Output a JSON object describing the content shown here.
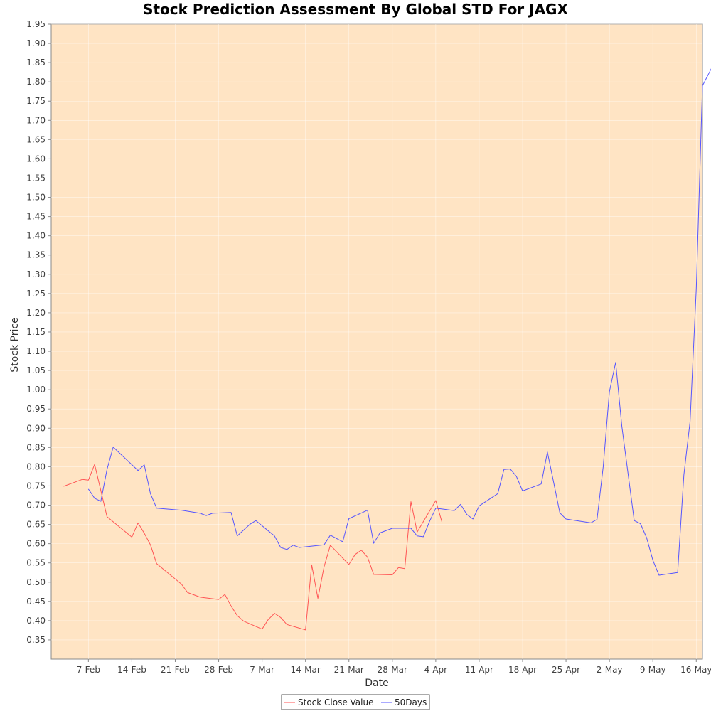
{
  "chart_data": {
    "type": "line",
    "title": "Stock Prediction Assessment By Global STD For JAGX",
    "xlabel": "Date",
    "ylabel": "Stock Price",
    "ylim": [
      0.3,
      1.95
    ],
    "xlim": [
      "2022-02-01",
      "2022-05-17"
    ],
    "y_ticks": [
      "0.35",
      "0.40",
      "0.45",
      "0.50",
      "0.55",
      "0.60",
      "0.65",
      "0.70",
      "0.75",
      "0.80",
      "0.85",
      "0.90",
      "0.95",
      "1.00",
      "1.05",
      "1.10",
      "1.15",
      "1.20",
      "1.25",
      "1.30",
      "1.35",
      "1.40",
      "1.45",
      "1.50",
      "1.55",
      "1.60",
      "1.65",
      "1.70",
      "1.75",
      "1.80",
      "1.85",
      "1.90",
      "1.95"
    ],
    "x_ticks": [
      {
        "date": "2022-02-07",
        "label": "7-Feb"
      },
      {
        "date": "2022-02-14",
        "label": "14-Feb"
      },
      {
        "date": "2022-02-21",
        "label": "21-Feb"
      },
      {
        "date": "2022-02-28",
        "label": "28-Feb"
      },
      {
        "date": "2022-03-07",
        "label": "7-Mar"
      },
      {
        "date": "2022-03-14",
        "label": "14-Mar"
      },
      {
        "date": "2022-03-21",
        "label": "21-Mar"
      },
      {
        "date": "2022-03-28",
        "label": "28-Mar"
      },
      {
        "date": "2022-04-04",
        "label": "4-Apr"
      },
      {
        "date": "2022-04-11",
        "label": "11-Apr"
      },
      {
        "date": "2022-04-18",
        "label": "18-Apr"
      },
      {
        "date": "2022-04-25",
        "label": "25-Apr"
      },
      {
        "date": "2022-05-02",
        "label": "2-May"
      },
      {
        "date": "2022-05-09",
        "label": "9-May"
      },
      {
        "date": "2022-05-16",
        "label": "16-May"
      }
    ],
    "grid": true,
    "legend_position": "bottom-center",
    "colors": {
      "plot_background": "#ffe4c4",
      "Stock Close Value": "#ff5555",
      "50Days": "#5555ff"
    },
    "series": [
      {
        "name": "Stock Close Value",
        "points": [
          [
            "2022-02-03",
            0.749
          ],
          [
            "2022-02-06",
            0.767
          ],
          [
            "2022-02-07",
            0.765
          ],
          [
            "2022-02-08",
            0.806
          ],
          [
            "2022-02-10",
            0.67
          ],
          [
            "2022-02-14",
            0.617
          ],
          [
            "2022-02-15",
            0.654
          ],
          [
            "2022-02-16",
            0.627
          ],
          [
            "2022-02-17",
            0.597
          ],
          [
            "2022-02-18",
            0.548
          ],
          [
            "2022-02-22",
            0.495
          ],
          [
            "2022-02-23",
            0.473
          ],
          [
            "2022-02-25",
            0.461
          ],
          [
            "2022-02-28",
            0.455
          ],
          [
            "2022-03-01",
            0.468
          ],
          [
            "2022-03-02",
            0.438
          ],
          [
            "2022-03-03",
            0.413
          ],
          [
            "2022-03-04",
            0.399
          ],
          [
            "2022-03-07",
            0.378
          ],
          [
            "2022-03-08",
            0.403
          ],
          [
            "2022-03-09",
            0.419
          ],
          [
            "2022-03-10",
            0.408
          ],
          [
            "2022-03-11",
            0.39
          ],
          [
            "2022-03-14",
            0.376
          ],
          [
            "2022-03-15",
            0.545
          ],
          [
            "2022-03-16",
            0.458
          ],
          [
            "2022-03-17",
            0.54
          ],
          [
            "2022-03-18",
            0.596
          ],
          [
            "2022-03-21",
            0.546
          ],
          [
            "2022-03-22",
            0.572
          ],
          [
            "2022-03-23",
            0.583
          ],
          [
            "2022-03-24",
            0.565
          ],
          [
            "2022-03-25",
            0.52
          ],
          [
            "2022-03-28",
            0.519
          ],
          [
            "2022-03-29",
            0.538
          ],
          [
            "2022-03-30",
            0.535
          ],
          [
            "2022-03-31",
            0.709
          ],
          [
            "2022-04-01",
            0.63
          ],
          [
            "2022-04-04",
            0.712
          ],
          [
            "2022-04-05",
            0.656
          ]
        ]
      },
      {
        "name": "50Days",
        "points": [
          [
            "2022-02-07",
            0.742
          ],
          [
            "2022-02-08",
            0.718
          ],
          [
            "2022-02-09",
            0.71
          ],
          [
            "2022-02-10",
            0.793
          ],
          [
            "2022-02-11",
            0.851
          ],
          [
            "2022-02-15",
            0.79
          ],
          [
            "2022-02-16",
            0.805
          ],
          [
            "2022-02-17",
            0.73
          ],
          [
            "2022-02-18",
            0.692
          ],
          [
            "2022-02-22",
            0.687
          ],
          [
            "2022-02-25",
            0.679
          ],
          [
            "2022-02-26",
            0.673
          ],
          [
            "2022-02-27",
            0.679
          ],
          [
            "2022-03-02",
            0.681
          ],
          [
            "2022-03-03",
            0.62
          ],
          [
            "2022-03-05",
            0.65
          ],
          [
            "2022-03-06",
            0.66
          ],
          [
            "2022-03-09",
            0.62
          ],
          [
            "2022-03-10",
            0.59
          ],
          [
            "2022-03-11",
            0.585
          ],
          [
            "2022-03-12",
            0.596
          ],
          [
            "2022-03-13",
            0.59
          ],
          [
            "2022-03-17",
            0.597
          ],
          [
            "2022-03-18",
            0.622
          ],
          [
            "2022-03-20",
            0.605
          ],
          [
            "2022-03-21",
            0.665
          ],
          [
            "2022-03-24",
            0.687
          ],
          [
            "2022-03-25",
            0.601
          ],
          [
            "2022-03-26",
            0.628
          ],
          [
            "2022-03-28",
            0.64
          ],
          [
            "2022-03-31",
            0.64
          ],
          [
            "2022-04-01",
            0.62
          ],
          [
            "2022-04-02",
            0.618
          ],
          [
            "2022-04-03",
            0.658
          ],
          [
            "2022-04-04",
            0.692
          ],
          [
            "2022-04-07",
            0.686
          ],
          [
            "2022-04-08",
            0.702
          ],
          [
            "2022-04-09",
            0.676
          ],
          [
            "2022-04-10",
            0.664
          ],
          [
            "2022-04-11",
            0.698
          ],
          [
            "2022-04-14",
            0.73
          ],
          [
            "2022-04-15",
            0.793
          ],
          [
            "2022-04-16",
            0.794
          ],
          [
            "2022-04-17",
            0.775
          ],
          [
            "2022-04-18",
            0.737
          ],
          [
            "2022-04-21",
            0.755
          ],
          [
            "2022-04-22",
            0.838
          ],
          [
            "2022-04-23",
            0.76
          ],
          [
            "2022-04-24",
            0.68
          ],
          [
            "2022-04-25",
            0.664
          ],
          [
            "2022-04-29",
            0.654
          ],
          [
            "2022-04-30",
            0.663
          ],
          [
            "2022-05-01",
            0.8
          ],
          [
            "2022-05-02",
            0.995
          ],
          [
            "2022-05-03",
            1.071
          ],
          [
            "2022-05-04",
            0.905
          ],
          [
            "2022-05-06",
            0.66
          ],
          [
            "2022-05-07",
            0.652
          ],
          [
            "2022-05-08",
            0.615
          ],
          [
            "2022-05-09",
            0.557
          ],
          [
            "2022-05-10",
            0.518
          ],
          [
            "2022-05-13",
            0.525
          ],
          [
            "2022-05-14",
            0.778
          ],
          [
            "2022-05-15",
            0.918
          ],
          [
            "2022-05-16",
            1.263
          ],
          [
            "2022-05-17",
            1.79
          ],
          [
            "2022-05-20",
            1.884
          ]
        ]
      }
    ]
  }
}
